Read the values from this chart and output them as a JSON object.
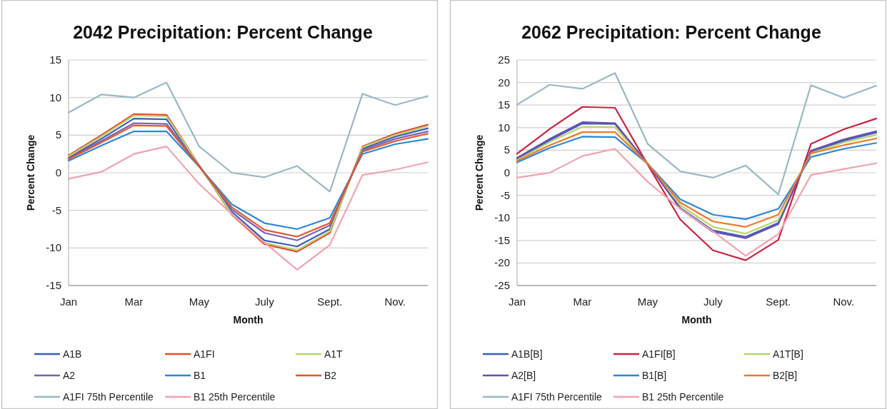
{
  "chart_data": [
    {
      "type": "line",
      "title": "2042 Precipitation: Percent Change",
      "xlabel": "Month",
      "ylabel": "Percent Change",
      "categories": [
        "Jan",
        null,
        "Mar",
        null,
        "May",
        null,
        "July",
        null,
        "Sept.",
        null,
        "Nov.",
        null
      ],
      "ylim": [
        -15,
        15
      ],
      "yticks": [
        -15,
        -10,
        -5,
        0,
        5,
        10,
        15
      ],
      "grid": "y",
      "legend": "bottom",
      "series": [
        {
          "name": "A1B",
          "color": "#3a5bbf",
          "values": [
            2.0,
            4.5,
            7.2,
            7.1,
            0.9,
            -5.2,
            -9.0,
            -9.8,
            -7.5,
            3.2,
            4.8,
            5.9
          ]
        },
        {
          "name": "A1FI",
          "color": "#e8482e",
          "values": [
            2.3,
            5.0,
            7.8,
            7.7,
            1.0,
            -5.6,
            -9.5,
            -10.5,
            -8.0,
            3.5,
            5.2,
            6.4
          ]
        },
        {
          "name": "A1T",
          "color": "#b9d46a",
          "values": [
            2.2,
            4.8,
            7.6,
            7.5,
            1.0,
            -5.5,
            -9.3,
            -10.3,
            -7.8,
            3.4,
            5.0,
            6.2
          ]
        },
        {
          "name": "A2",
          "color": "#7a62b2",
          "values": [
            1.9,
            4.2,
            6.6,
            6.5,
            0.9,
            -4.9,
            -8.0,
            -9.0,
            -7.0,
            3.0,
            4.5,
            5.5
          ]
        },
        {
          "name": "B1",
          "color": "#2e86d8",
          "values": [
            1.6,
            3.6,
            5.5,
            5.5,
            0.8,
            -4.2,
            -6.7,
            -7.5,
            -6.0,
            2.5,
            3.8,
            4.5
          ]
        },
        {
          "name": "B2",
          "color": "#e2572b",
          "values": [
            1.8,
            4.0,
            6.3,
            6.2,
            0.8,
            -4.6,
            -7.6,
            -8.5,
            -6.7,
            2.8,
            4.2,
            5.2
          ]
        },
        {
          "name": "A1FI 75th Percentile",
          "color": "#98b9c7",
          "values": [
            8.0,
            10.4,
            10.0,
            12.0,
            3.5,
            0.0,
            -0.6,
            0.9,
            -2.5,
            10.5,
            9.0,
            10.2
          ]
        },
        {
          "name": "B1 25th Percentile",
          "color": "#f2a3ad",
          "values": [
            -0.8,
            0.1,
            2.5,
            3.5,
            -1.5,
            -5.5,
            -9.3,
            -12.9,
            -9.6,
            -0.3,
            0.4,
            1.4
          ]
        }
      ]
    },
    {
      "type": "line",
      "title": "2062 Precipitation: Percent Change",
      "xlabel": "Month",
      "ylabel": "Percent Change",
      "categories": [
        "Jan",
        null,
        "Mar",
        null,
        "May",
        null,
        "July",
        null,
        "Sept.",
        null,
        "Nov.",
        null
      ],
      "ylim": [
        -25,
        25
      ],
      "yticks": [
        -25,
        -20,
        -15,
        -10,
        -5,
        0,
        5,
        10,
        15,
        20,
        25
      ],
      "grid": "y",
      "legend": "bottom",
      "series": [
        {
          "name": "A1B[B]",
          "color": "#3a5bbf",
          "values": [
            3.0,
            7.2,
            10.9,
            10.8,
            2.0,
            -7.8,
            -12.8,
            -14.2,
            -11.1,
            4.6,
            7.1,
            8.9
          ]
        },
        {
          "name": "A1FI[B]",
          "color": "#cc2140",
          "values": [
            4.2,
            9.7,
            14.6,
            14.4,
            1.8,
            -10.4,
            -17.2,
            -19.4,
            -14.9,
            6.4,
            9.6,
            12.0
          ]
        },
        {
          "name": "A1T[B]",
          "color": "#b9d46a",
          "values": [
            2.8,
            6.8,
            10.2,
            10.1,
            2.0,
            -7.2,
            -12.0,
            -13.5,
            -10.5,
            4.4,
            6.7,
            8.4
          ]
        },
        {
          "name": "A2[B]",
          "color": "#6a4fb0",
          "values": [
            3.3,
            7.5,
            11.2,
            11.0,
            2.0,
            -8.0,
            -13.1,
            -14.5,
            -11.4,
            4.9,
            7.4,
            9.2
          ]
        },
        {
          "name": "B1[B]",
          "color": "#2e86d8",
          "values": [
            2.3,
            5.5,
            8.0,
            7.9,
            2.0,
            -5.9,
            -9.3,
            -10.3,
            -8.0,
            3.5,
            5.3,
            6.6
          ]
        },
        {
          "name": "B2[B]",
          "color": "#ee7a2a",
          "values": [
            2.6,
            6.1,
            9.0,
            9.0,
            2.0,
            -6.6,
            -10.8,
            -12.0,
            -9.3,
            4.3,
            6.1,
            7.6
          ]
        },
        {
          "name": "A1FI 75th Percentile",
          "color": "#98b9c7",
          "values": [
            15.1,
            19.5,
            18.6,
            22.1,
            6.4,
            0.3,
            -1.1,
            1.6,
            -4.8,
            19.4,
            16.6,
            19.3
          ]
        },
        {
          "name": "B1 25th Percentile",
          "color": "#f2a3ad",
          "values": [
            -1.1,
            0.0,
            3.7,
            5.3,
            -2.0,
            -8.0,
            -13.0,
            -18.4,
            -13.6,
            -0.5,
            0.8,
            2.1
          ]
        }
      ]
    }
  ]
}
